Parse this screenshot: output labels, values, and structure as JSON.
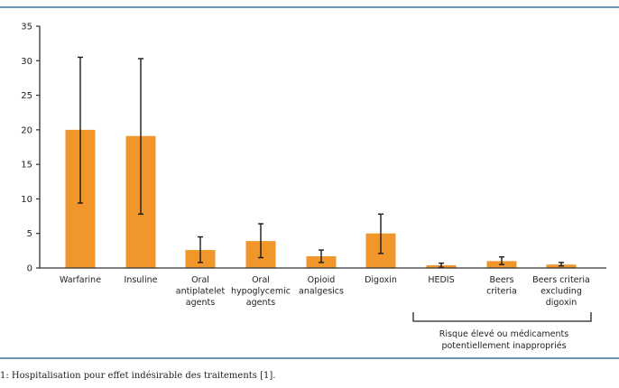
{
  "caption": "1: Hospitalisation pour effet indésirable des traitements [1].",
  "chart_data": {
    "type": "bar",
    "title": "",
    "xlabel": "",
    "ylabel": "",
    "ylim": [
      0,
      35
    ],
    "yticks": [
      "0",
      "5",
      "10",
      "15",
      "20",
      "25",
      "30",
      "35"
    ],
    "grid": false,
    "bar_color": "#f0962a",
    "categories": [
      [
        "Warfarine"
      ],
      [
        "Insuline"
      ],
      [
        "Oral",
        "antiplatelet",
        "agents"
      ],
      [
        "Oral",
        "hypoglycemic",
        "agents"
      ],
      [
        "Opioid",
        "analgesics"
      ],
      [
        "Digoxin"
      ],
      [
        "HEDIS"
      ],
      [
        "Beers",
        "criteria"
      ],
      [
        "Beers criteria",
        "excluding",
        "digoxin"
      ]
    ],
    "values": [
      20.0,
      19.1,
      2.6,
      3.9,
      1.7,
      5.0,
      0.4,
      1.0,
      0.5
    ],
    "error_low": [
      9.4,
      7.8,
      0.8,
      1.5,
      0.8,
      2.1,
      0.1,
      0.5,
      0.3
    ],
    "error_high": [
      30.5,
      30.3,
      4.5,
      6.4,
      2.6,
      7.8,
      0.7,
      1.6,
      0.8
    ],
    "group_annotation": {
      "label": [
        "Risque élevé ou médicaments",
        "potentiellement inappropriés"
      ],
      "from_index": 6,
      "to_index": 8
    }
  }
}
